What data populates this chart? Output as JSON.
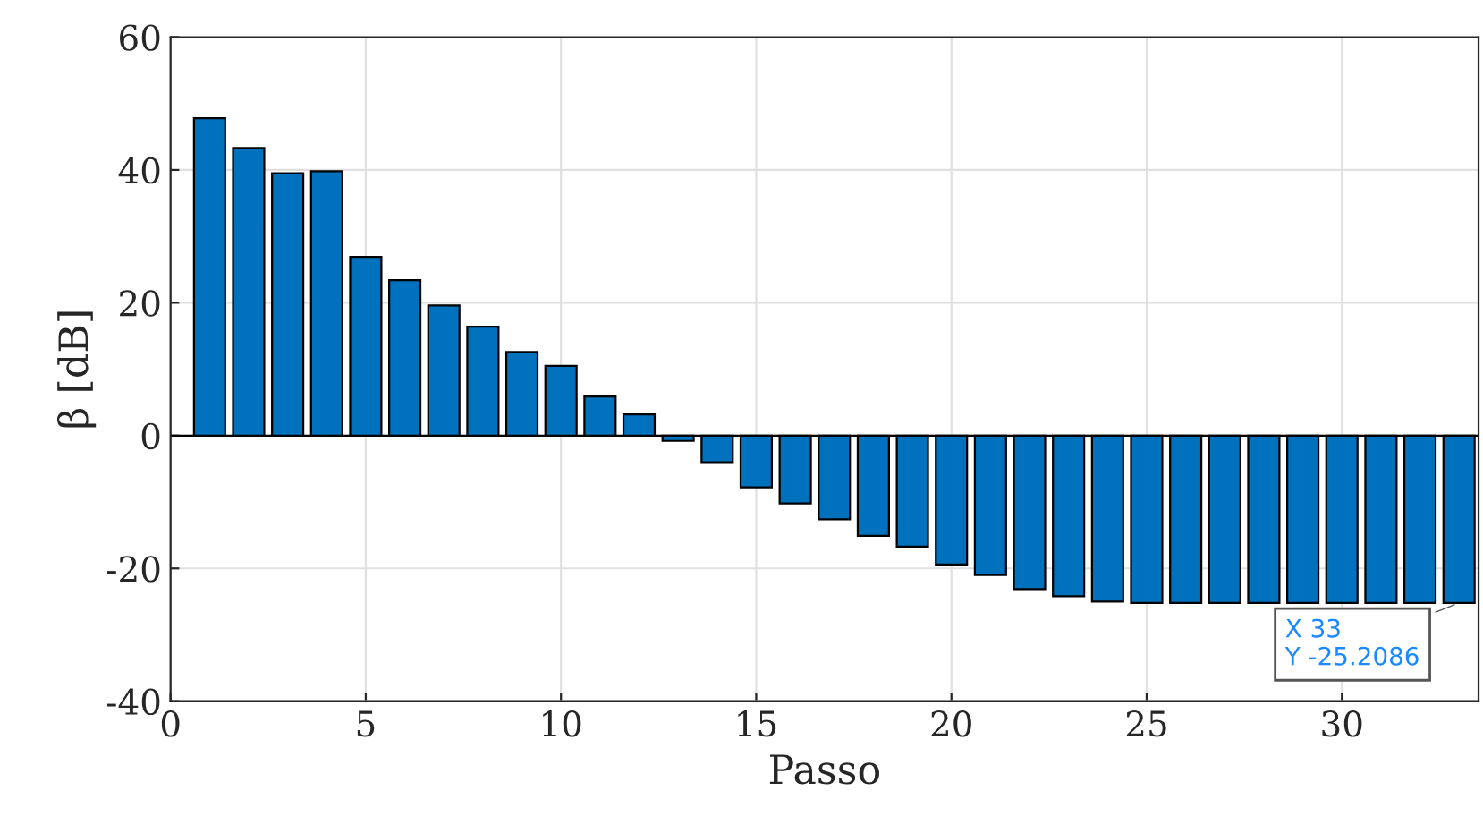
{
  "chart_data": {
    "type": "bar",
    "xlabel": "Passo",
    "ylabel": "β [dB]",
    "x": [
      1,
      2,
      3,
      4,
      5,
      6,
      7,
      8,
      9,
      10,
      11,
      12,
      13,
      14,
      15,
      16,
      17,
      18,
      19,
      20,
      21,
      22,
      23,
      24,
      25,
      26,
      27,
      28,
      29,
      30,
      31,
      32,
      33
    ],
    "values": [
      47.8,
      43.3,
      39.5,
      39.8,
      26.9,
      23.4,
      19.6,
      16.4,
      12.6,
      10.5,
      5.9,
      3.2,
      -0.8,
      -4.0,
      -7.8,
      -10.2,
      -12.6,
      -15.1,
      -16.7,
      -19.4,
      -21.0,
      -23.1,
      -24.2,
      -25.0,
      -25.2,
      -25.2,
      -25.2,
      -25.2,
      -25.2,
      -25.2,
      -25.2,
      -25.2,
      -25.2086
    ],
    "color": "#0072bd",
    "xlim": [
      0,
      33.5
    ],
    "xticks": [
      0,
      5,
      10,
      15,
      20,
      25,
      30
    ],
    "ylim": [
      -40,
      60
    ],
    "yticks": [
      -40,
      -20,
      0,
      20,
      40,
      60
    ],
    "grid": true,
    "annotations": [
      {
        "text": "X 33\nY -25.2086",
        "x": 33,
        "y": -25.2086
      }
    ]
  }
}
